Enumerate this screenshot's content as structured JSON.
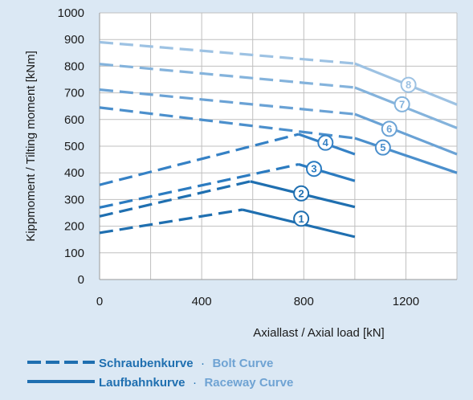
{
  "chart_data": {
    "type": "line",
    "xlabel": "Axiallast / Axial load [kN]",
    "ylabel": "Kippmoment / Tilting moment [kNm]",
    "xlim": [
      0,
      1400
    ],
    "ylim": [
      0,
      1000
    ],
    "xticks": [
      "0",
      "400",
      "800",
      "1200"
    ],
    "yticks": [
      "0",
      "100",
      "200",
      "300",
      "400",
      "500",
      "600",
      "700",
      "800",
      "900",
      "1000"
    ],
    "grid": true,
    "series": [
      {
        "label": "1",
        "color": "#1f6fb0",
        "bolt": [
          [
            0,
            175
          ],
          [
            560,
            262
          ]
        ],
        "raceway": [
          [
            560,
            262
          ],
          [
            1000,
            160
          ]
        ],
        "marker": [
          790,
          228
        ]
      },
      {
        "label": "2",
        "color": "#1f6fb0",
        "bolt": [
          [
            0,
            237
          ],
          [
            590,
            368
          ]
        ],
        "raceway": [
          [
            590,
            368
          ],
          [
            1000,
            272
          ]
        ],
        "marker": [
          790,
          323
        ]
      },
      {
        "label": "3",
        "color": "#2b7bc0",
        "bolt": [
          [
            0,
            270
          ],
          [
            780,
            432
          ]
        ],
        "raceway": [
          [
            780,
            432
          ],
          [
            1000,
            370
          ]
        ],
        "marker": [
          840,
          415
        ]
      },
      {
        "label": "4",
        "color": "#3581c5",
        "bolt": [
          [
            0,
            355
          ],
          [
            780,
            545
          ]
        ],
        "raceway": [
          [
            780,
            545
          ],
          [
            1000,
            470
          ]
        ],
        "marker": [
          885,
          513
        ]
      },
      {
        "label": "5",
        "color": "#4b8fcc",
        "bolt": [
          [
            0,
            645
          ],
          [
            1000,
            530
          ]
        ],
        "raceway": [
          [
            1000,
            530
          ],
          [
            1400,
            400
          ]
        ],
        "marker": [
          1110,
          495
        ]
      },
      {
        "label": "6",
        "color": "#6aa2d5",
        "bolt": [
          [
            0,
            712
          ],
          [
            1000,
            620
          ]
        ],
        "raceway": [
          [
            1000,
            620
          ],
          [
            1400,
            470
          ]
        ],
        "marker": [
          1135,
          565
        ]
      },
      {
        "label": "7",
        "color": "#84b3dc",
        "bolt": [
          [
            0,
            808
          ],
          [
            1000,
            720
          ]
        ],
        "raceway": [
          [
            1000,
            720
          ],
          [
            1400,
            568
          ]
        ],
        "marker": [
          1185,
          657
        ]
      },
      {
        "label": "8",
        "color": "#9dc2e3",
        "bolt": [
          [
            0,
            890
          ],
          [
            1000,
            810
          ]
        ],
        "raceway": [
          [
            1000,
            810
          ],
          [
            1400,
            656
          ]
        ],
        "marker": [
          1210,
          730
        ]
      }
    ],
    "legend": [
      {
        "style": "dashed",
        "label_de": "Schraubenkurve",
        "separator": "·",
        "label_en": "Bolt Curve"
      },
      {
        "style": "solid",
        "label_de": "Laufbahnkurve",
        "separator": "·",
        "label_en": "Raceway Curve"
      }
    ]
  }
}
